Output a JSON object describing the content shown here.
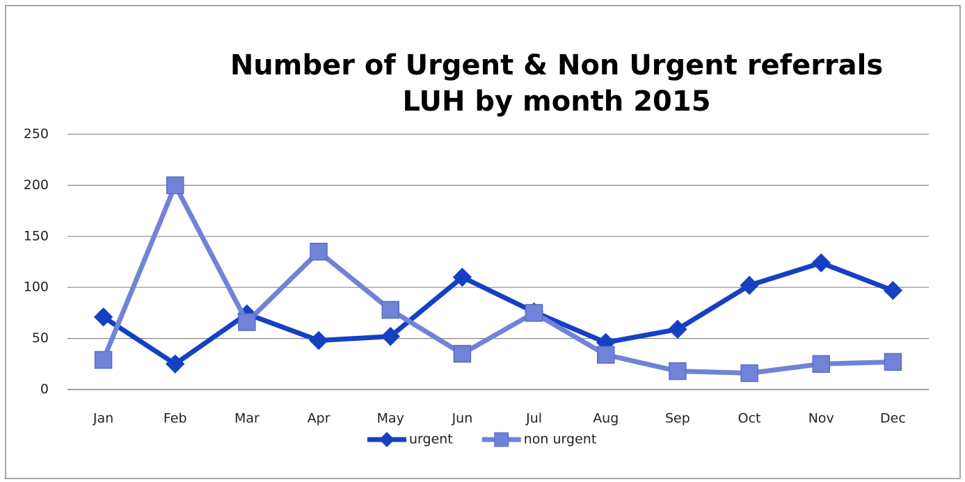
{
  "chart_data": {
    "type": "line",
    "title": "Number of Urgent & Non Urgent referrals LUH by month 2015",
    "categories": [
      "Jan",
      "Feb",
      "Mar",
      "Apr",
      "May",
      "Jun",
      "Jul",
      "Aug",
      "Sep",
      "Oct",
      "Nov",
      "Dec"
    ],
    "series": [
      {
        "name": "urgent",
        "color": "#1540c4",
        "marker": "diamond",
        "values": [
          71,
          25,
          74,
          48,
          52,
          110,
          76,
          46,
          59,
          102,
          124,
          97
        ]
      },
      {
        "name": "non urgent",
        "color": "#7083d8",
        "marker": "square",
        "values": [
          29,
          200,
          66,
          135,
          78,
          35,
          75,
          34,
          18,
          16,
          25,
          27
        ]
      }
    ],
    "ylim": [
      0,
      250
    ],
    "yticks": [
      0,
      50,
      100,
      150,
      200,
      250
    ],
    "grid": true,
    "legend": "bottom"
  }
}
